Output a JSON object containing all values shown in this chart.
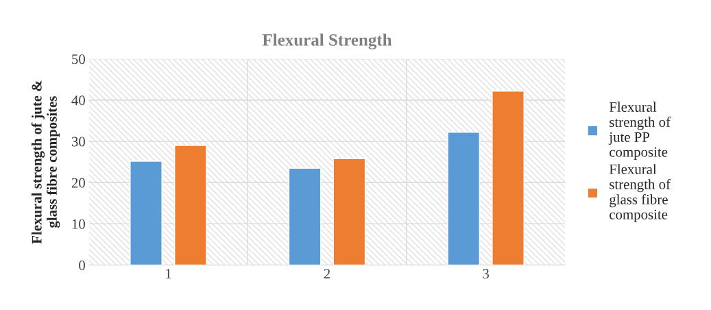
{
  "chart_data": {
    "type": "bar",
    "title": "Flexural Strength",
    "ylabel": "Flexural strength of jute &\nglass fibre composites",
    "categories": [
      "1",
      "2",
      "3"
    ],
    "series": [
      {
        "name": "Flexural\nstrength of\njute PP\ncomposite",
        "color": "#5b9bd5",
        "values": [
          25.2,
          23.5,
          32.2
        ]
      },
      {
        "name": "Flexural\nstrength of\nglass fibre\ncomposite",
        "color": "#ed7d31",
        "values": [
          29,
          25.8,
          42.2
        ]
      }
    ],
    "ylim": [
      0,
      50
    ],
    "yticks": [
      0,
      10,
      20,
      30,
      40,
      50
    ],
    "grid": true,
    "legend": "right"
  }
}
